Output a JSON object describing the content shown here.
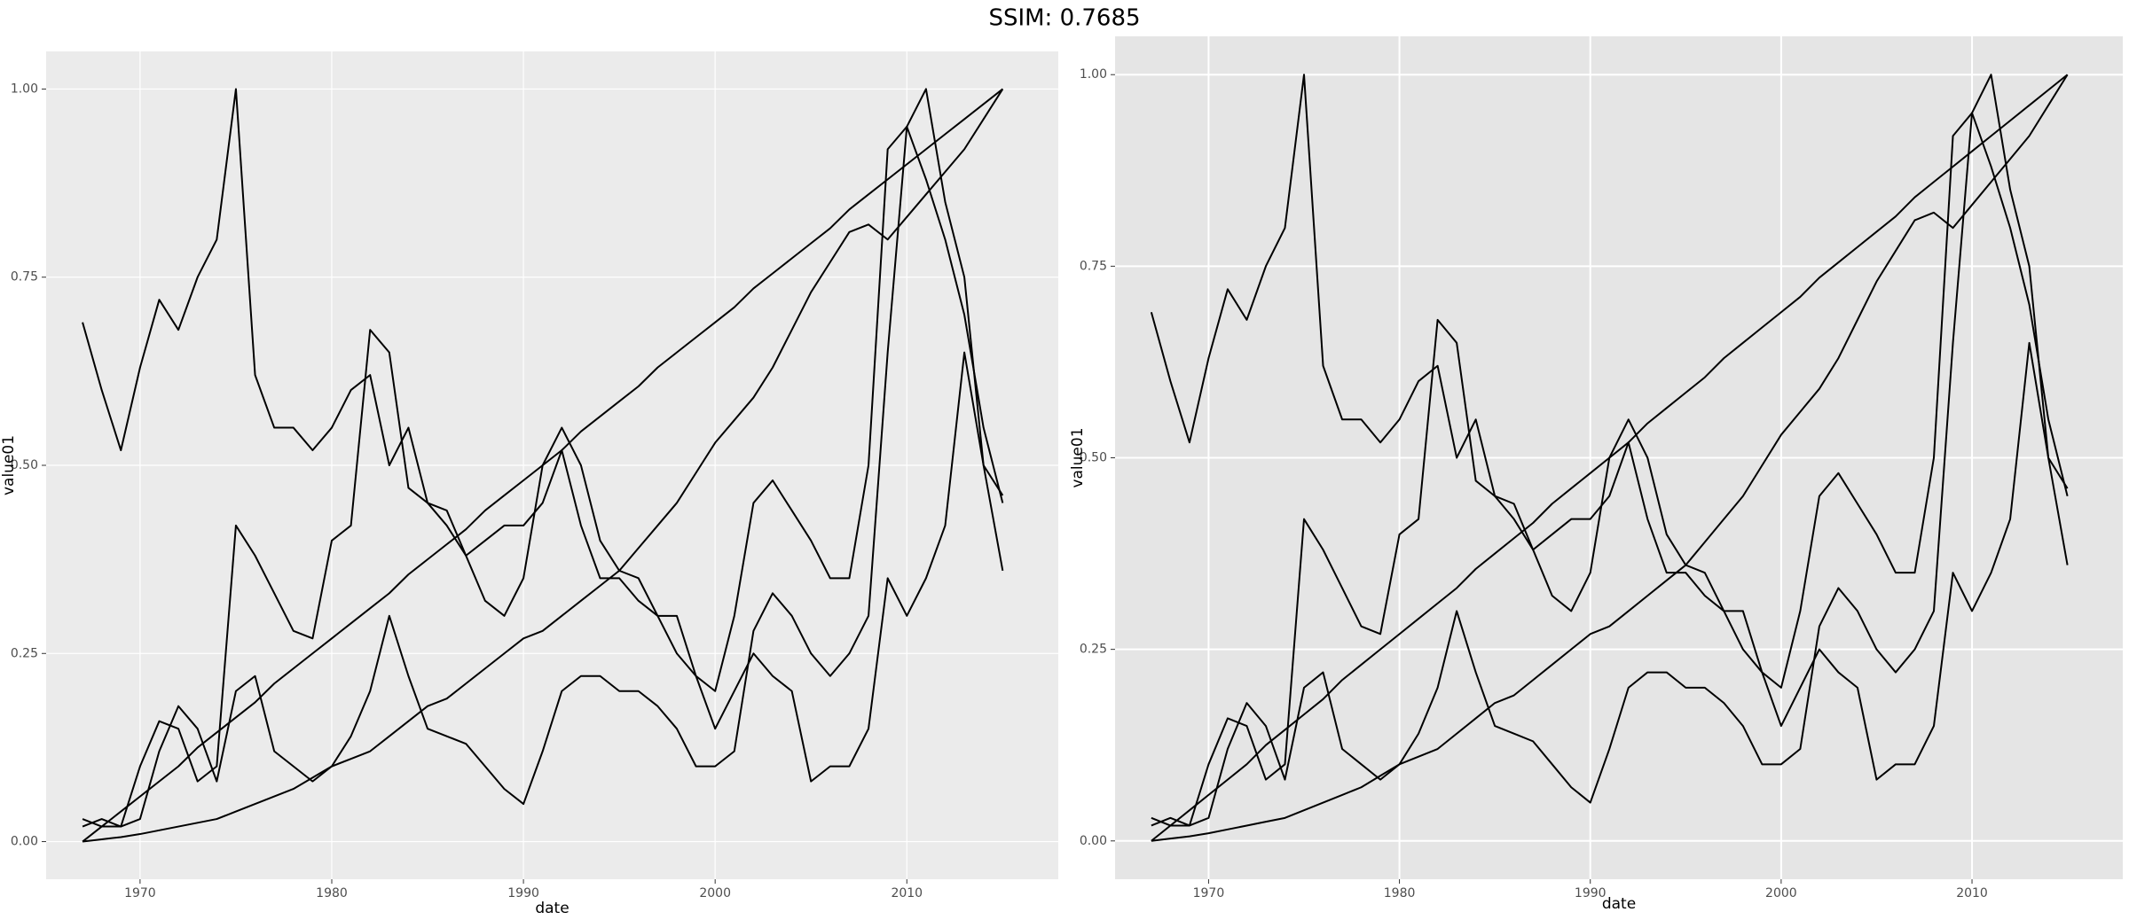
{
  "title": "SSIM: 0.7685",
  "chart_data": [
    {
      "type": "line",
      "xlabel": "date",
      "ylabel": "value01",
      "x": [
        1967,
        1968,
        1969,
        1970,
        1971,
        1972,
        1973,
        1974,
        1975,
        1976,
        1977,
        1978,
        1979,
        1980,
        1981,
        1982,
        1983,
        1984,
        1985,
        1986,
        1987,
        1988,
        1989,
        1990,
        1991,
        1992,
        1993,
        1994,
        1995,
        1996,
        1997,
        1998,
        1999,
        2000,
        2001,
        2002,
        2003,
        2004,
        2005,
        2006,
        2007,
        2008,
        2009,
        2010,
        2011,
        2012,
        2013,
        2014,
        2015
      ],
      "series": [
        {
          "color": "#000000",
          "values": [
            0,
            0.003,
            0.006,
            0.01,
            0.015,
            0.02,
            0.025,
            0.03,
            0.04,
            0.05,
            0.06,
            0.07,
            0.085,
            0.1,
            0.11,
            0.12,
            0.14,
            0.16,
            0.18,
            0.19,
            0.21,
            0.23,
            0.25,
            0.27,
            0.28,
            0.3,
            0.32,
            0.34,
            0.36,
            0.39,
            0.42,
            0.45,
            0.49,
            0.53,
            0.56,
            0.59,
            0.63,
            0.68,
            0.73,
            0.77,
            0.81,
            0.82,
            0.8,
            0.83,
            0.86,
            0.89,
            0.92,
            0.96,
            1.0
          ]
        },
        {
          "color": "#000000",
          "values": [
            0,
            0.02,
            0.04,
            0.06,
            0.08,
            0.1,
            0.125,
            0.145,
            0.165,
            0.185,
            0.21,
            0.23,
            0.25,
            0.27,
            0.29,
            0.31,
            0.33,
            0.355,
            0.375,
            0.395,
            0.415,
            0.44,
            0.46,
            0.48,
            0.5,
            0.52,
            0.545,
            0.565,
            0.585,
            0.605,
            0.63,
            0.65,
            0.67,
            0.69,
            0.71,
            0.735,
            0.755,
            0.775,
            0.795,
            0.815,
            0.84,
            0.86,
            0.88,
            0.9,
            0.92,
            0.94,
            0.96,
            0.98,
            1.0
          ]
        },
        {
          "color": "#000000",
          "values": [
            0.69,
            0.6,
            0.52,
            0.63,
            0.72,
            0.68,
            0.75,
            0.8,
            1.0,
            0.62,
            0.55,
            0.55,
            0.52,
            0.55,
            0.6,
            0.62,
            0.5,
            0.55,
            0.45,
            0.42,
            0.38,
            0.4,
            0.42,
            0.42,
            0.45,
            0.52,
            0.42,
            0.35,
            0.35,
            0.32,
            0.3,
            0.3,
            0.22,
            0.15,
            0.2,
            0.25,
            0.22,
            0.2,
            0.08,
            0.1,
            0.1,
            0.15,
            0.35,
            0.3,
            0.35,
            0.42,
            0.65,
            0.5,
            0.46
          ]
        },
        {
          "color": "#000000",
          "values": [
            0.02,
            0.03,
            0.02,
            0.03,
            0.12,
            0.18,
            0.15,
            0.08,
            0.2,
            0.22,
            0.12,
            0.1,
            0.08,
            0.1,
            0.14,
            0.2,
            0.3,
            0.22,
            0.15,
            0.14,
            0.13,
            0.1,
            0.07,
            0.05,
            0.12,
            0.2,
            0.22,
            0.22,
            0.2,
            0.2,
            0.18,
            0.15,
            0.1,
            0.1,
            0.12,
            0.28,
            0.33,
            0.3,
            0.25,
            0.22,
            0.25,
            0.3,
            0.65,
            0.95,
            1.0,
            0.85,
            0.75,
            0.5,
            0.36
          ]
        },
        {
          "color": "#000000",
          "values": [
            0.03,
            0.02,
            0.02,
            0.1,
            0.16,
            0.15,
            0.08,
            0.1,
            0.42,
            0.38,
            0.33,
            0.28,
            0.27,
            0.4,
            0.42,
            0.68,
            0.65,
            0.47,
            0.45,
            0.44,
            0.38,
            0.32,
            0.3,
            0.35,
            0.5,
            0.55,
            0.5,
            0.4,
            0.36,
            0.35,
            0.3,
            0.25,
            0.22,
            0.2,
            0.3,
            0.45,
            0.48,
            0.44,
            0.4,
            0.35,
            0.35,
            0.5,
            0.92,
            0.95,
            0.88,
            0.8,
            0.7,
            0.55,
            0.45
          ]
        }
      ],
      "xlim": [
        1965.1,
        2017.9
      ],
      "xticks": [
        1970,
        1980,
        1990,
        2000,
        2010
      ],
      "ylim": [
        -0.05,
        1.05
      ],
      "yticks": [
        {
          "value": 0,
          "label": "0.00"
        },
        {
          "value": 0.25,
          "label": "0.25"
        },
        {
          "value": 0.5,
          "label": "0.50"
        },
        {
          "value": 0.75,
          "label": "0.75"
        },
        {
          "value": 1,
          "label": "1.00"
        }
      ],
      "grid": true
    },
    {
      "type": "line",
      "xlabel": "date",
      "ylabel": "value01",
      "x": [
        1967,
        1968,
        1969,
        1970,
        1971,
        1972,
        1973,
        1974,
        1975,
        1976,
        1977,
        1978,
        1979,
        1980,
        1981,
        1982,
        1983,
        1984,
        1985,
        1986,
        1987,
        1988,
        1989,
        1990,
        1991,
        1992,
        1993,
        1994,
        1995,
        1996,
        1997,
        1998,
        1999,
        2000,
        2001,
        2002,
        2003,
        2004,
        2005,
        2006,
        2007,
        2008,
        2009,
        2010,
        2011,
        2012,
        2013,
        2014,
        2015
      ],
      "series": [
        {
          "color": "#000000",
          "values": [
            0,
            0.003,
            0.006,
            0.01,
            0.015,
            0.02,
            0.025,
            0.03,
            0.04,
            0.05,
            0.06,
            0.07,
            0.085,
            0.1,
            0.11,
            0.12,
            0.14,
            0.16,
            0.18,
            0.19,
            0.21,
            0.23,
            0.25,
            0.27,
            0.28,
            0.3,
            0.32,
            0.34,
            0.36,
            0.39,
            0.42,
            0.45,
            0.49,
            0.53,
            0.56,
            0.59,
            0.63,
            0.68,
            0.73,
            0.77,
            0.81,
            0.82,
            0.8,
            0.83,
            0.86,
            0.89,
            0.92,
            0.96,
            1.0
          ]
        },
        {
          "color": "#000000",
          "values": [
            0,
            0.02,
            0.04,
            0.06,
            0.08,
            0.1,
            0.125,
            0.145,
            0.165,
            0.185,
            0.21,
            0.23,
            0.25,
            0.27,
            0.29,
            0.31,
            0.33,
            0.355,
            0.375,
            0.395,
            0.415,
            0.44,
            0.46,
            0.48,
            0.5,
            0.52,
            0.545,
            0.565,
            0.585,
            0.605,
            0.63,
            0.65,
            0.67,
            0.69,
            0.71,
            0.735,
            0.755,
            0.775,
            0.795,
            0.815,
            0.84,
            0.86,
            0.88,
            0.9,
            0.92,
            0.94,
            0.96,
            0.98,
            1.0
          ]
        },
        {
          "color": "#000000",
          "values": [
            0.69,
            0.6,
            0.52,
            0.63,
            0.72,
            0.68,
            0.75,
            0.8,
            1.0,
            0.62,
            0.55,
            0.55,
            0.52,
            0.55,
            0.6,
            0.62,
            0.5,
            0.55,
            0.45,
            0.42,
            0.38,
            0.4,
            0.42,
            0.42,
            0.45,
            0.52,
            0.42,
            0.35,
            0.35,
            0.32,
            0.3,
            0.3,
            0.22,
            0.15,
            0.2,
            0.25,
            0.22,
            0.2,
            0.08,
            0.1,
            0.1,
            0.15,
            0.35,
            0.3,
            0.35,
            0.42,
            0.65,
            0.5,
            0.46
          ]
        },
        {
          "color": "#000000",
          "values": [
            0.02,
            0.03,
            0.02,
            0.03,
            0.12,
            0.18,
            0.15,
            0.08,
            0.2,
            0.22,
            0.12,
            0.1,
            0.08,
            0.1,
            0.14,
            0.2,
            0.3,
            0.22,
            0.15,
            0.14,
            0.13,
            0.1,
            0.07,
            0.05,
            0.12,
            0.2,
            0.22,
            0.22,
            0.2,
            0.2,
            0.18,
            0.15,
            0.1,
            0.1,
            0.12,
            0.28,
            0.33,
            0.3,
            0.25,
            0.22,
            0.25,
            0.3,
            0.65,
            0.95,
            1.0,
            0.85,
            0.75,
            0.5,
            0.36
          ]
        },
        {
          "color": "#000000",
          "values": [
            0.03,
            0.02,
            0.02,
            0.1,
            0.16,
            0.15,
            0.08,
            0.1,
            0.42,
            0.38,
            0.33,
            0.28,
            0.27,
            0.4,
            0.42,
            0.68,
            0.65,
            0.47,
            0.45,
            0.44,
            0.38,
            0.32,
            0.3,
            0.35,
            0.5,
            0.55,
            0.5,
            0.4,
            0.36,
            0.35,
            0.3,
            0.25,
            0.22,
            0.2,
            0.3,
            0.45,
            0.48,
            0.44,
            0.4,
            0.35,
            0.35,
            0.5,
            0.92,
            0.95,
            0.88,
            0.8,
            0.7,
            0.55,
            0.45
          ]
        }
      ],
      "xlim": [
        1965.1,
        2017.9
      ],
      "xticks": [
        1970,
        1980,
        1990,
        2000,
        2010
      ],
      "ylim": [
        -0.05,
        1.05
      ],
      "yticks": [
        {
          "value": 0,
          "label": "0.00"
        },
        {
          "value": 0.25,
          "label": "0.25"
        },
        {
          "value": 0.5,
          "label": "0.50"
        },
        {
          "value": 0.75,
          "label": "0.75"
        },
        {
          "value": 1,
          "label": "1.00"
        }
      ],
      "grid": true
    }
  ]
}
